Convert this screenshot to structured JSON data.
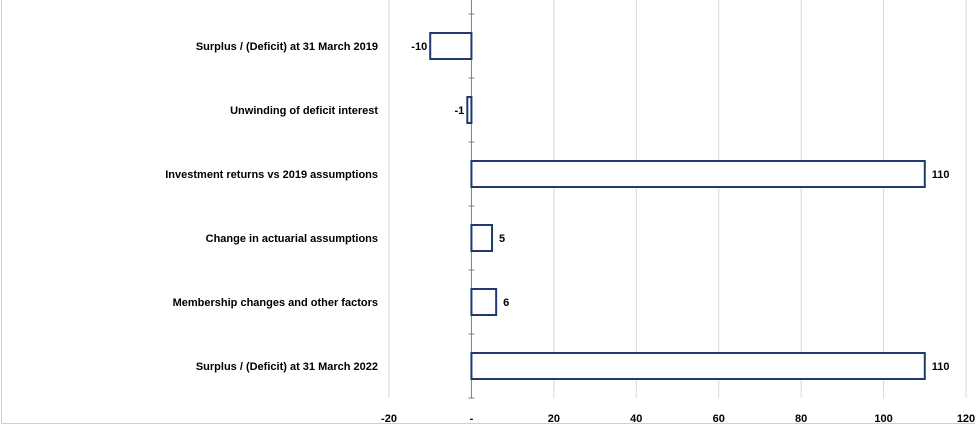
{
  "colors": {
    "bar_fill": "#ffffff",
    "bar_stroke": "#1f3a6b",
    "grid": "#d9d9d9",
    "axis": "#7f7f7f"
  },
  "chart_data": {
    "type": "bar",
    "orientation": "horizontal",
    "categories": [
      "Surplus / (Deficit) at 31 March 2019",
      "Unwinding of deficit interest",
      "Investment returns vs 2019 assumptions",
      "Change in actuarial assumptions",
      "Membership changes and other factors",
      "Surplus / (Deficit) at 31 March 2022"
    ],
    "values": [
      -10,
      -1,
      110,
      5,
      6,
      110
    ],
    "data_labels": [
      "-10",
      "-1",
      "110",
      "5",
      "6",
      "110"
    ],
    "xlim": [
      -20,
      120
    ],
    "xticks": [
      -20,
      0,
      20,
      40,
      60,
      80,
      100,
      120
    ],
    "xtick_labels": [
      "-20",
      "-",
      "20",
      "40",
      "60",
      "80",
      "100",
      "120"
    ],
    "grid": true,
    "legend": "none"
  }
}
